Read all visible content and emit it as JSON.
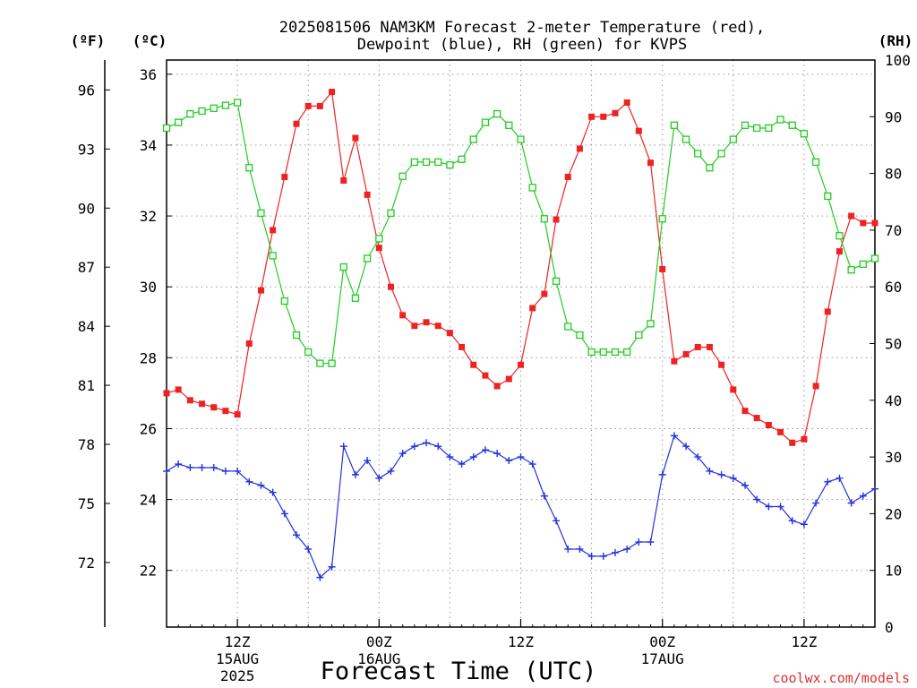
{
  "chart_data": {
    "type": "line",
    "title_line1": "2025081506 NAM3KM Forecast 2-meter Temperature (red),",
    "title_line2": "Dewpoint (blue), RH (green) for KVPS",
    "xlabel": "Forecast Time (UTC)",
    "unit_left_f": "(ºF)",
    "unit_left_c": "(ºC)",
    "unit_right": "(RH)",
    "watermark": "coolwx.com/models",
    "x_range_hours": [
      0,
      60
    ],
    "y_left_c_range": [
      20.4,
      36.4
    ],
    "y_right_range": [
      0,
      100
    ],
    "x_ticks": [
      {
        "hour": 6,
        "line1": "12Z",
        "line2": "15AUG",
        "line3": "2025"
      },
      {
        "hour": 18,
        "line1": "00Z",
        "line2": "16AUG",
        "line3": ""
      },
      {
        "hour": 30,
        "line1": "12Z",
        "line2": "",
        "line3": ""
      },
      {
        "hour": 42,
        "line1": "00Z",
        "line2": "17AUG",
        "line3": ""
      },
      {
        "hour": 54,
        "line1": "12Z",
        "line2": "",
        "line3": ""
      }
    ],
    "y_c_ticks": [
      "22",
      "24",
      "26",
      "28",
      "30",
      "32",
      "34",
      "36"
    ],
    "y_f_ticks": [
      "72",
      "75",
      "78",
      "81",
      "84",
      "87",
      "90",
      "93",
      "96"
    ],
    "y_rh_ticks": [
      "0",
      "10",
      "20",
      "30",
      "40",
      "50",
      "60",
      "70",
      "80",
      "90",
      "100"
    ],
    "grid": true,
    "series": [
      {
        "name": "Temperature",
        "color": "#ee2222",
        "marker": "filled-square",
        "values": [
          27.0,
          27.1,
          26.8,
          26.7,
          26.6,
          26.5,
          26.4,
          28.4,
          29.9,
          31.6,
          33.1,
          34.6,
          35.1,
          35.1,
          35.5,
          33.0,
          34.2,
          32.6,
          31.1,
          30.0,
          29.2,
          28.9,
          29.0,
          28.9,
          28.7,
          28.3,
          27.8,
          27.5,
          27.2,
          27.4,
          27.8,
          29.4,
          29.8,
          31.9,
          33.1,
          33.9,
          34.8,
          34.8,
          34.9,
          35.2,
          34.4,
          33.5,
          30.5,
          27.9,
          28.1,
          28.3,
          28.3,
          27.8,
          27.1,
          26.5,
          26.3,
          26.1,
          25.9,
          25.6,
          25.7,
          27.2,
          29.3,
          31.0,
          32.0,
          31.8,
          31.8
        ]
      },
      {
        "name": "Dewpoint",
        "color": "#2233dd",
        "marker": "plus",
        "values": [
          24.8,
          25.0,
          24.9,
          24.9,
          24.9,
          24.8,
          24.8,
          24.5,
          24.4,
          24.2,
          23.6,
          23.0,
          22.6,
          21.8,
          22.1,
          25.5,
          24.7,
          25.1,
          24.6,
          24.8,
          25.3,
          25.5,
          25.6,
          25.5,
          25.2,
          25.0,
          25.2,
          25.4,
          25.3,
          25.1,
          25.2,
          25.0,
          24.1,
          23.4,
          22.6,
          22.6,
          22.4,
          22.4,
          22.5,
          22.6,
          22.8,
          22.8,
          24.7,
          25.8,
          25.5,
          25.2,
          24.8,
          24.7,
          24.6,
          24.4,
          24.0,
          23.8,
          23.8,
          23.4,
          23.3,
          23.9,
          24.5,
          24.6,
          23.9,
          24.1,
          24.3
        ]
      },
      {
        "name": "RH",
        "color": "#22cc22",
        "marker": "open-square",
        "values": [
          88,
          89,
          90.5,
          91,
          91.5,
          92,
          92.5,
          81,
          73,
          65.5,
          57.5,
          51.5,
          48.5,
          46.5,
          46.5,
          63.5,
          58,
          65,
          68.5,
          73,
          79.5,
          82,
          82,
          82,
          81.5,
          82.5,
          86,
          89,
          90.5,
          88.5,
          86,
          77.5,
          72,
          61,
          53,
          51.5,
          48.5,
          48.5,
          48.5,
          48.5,
          51.5,
          53.5,
          72,
          88.5,
          86,
          83.5,
          81,
          83.5,
          86,
          88.5,
          88,
          88,
          89.5,
          88.5,
          87,
          82,
          76,
          69,
          63,
          64,
          65
        ]
      }
    ]
  }
}
